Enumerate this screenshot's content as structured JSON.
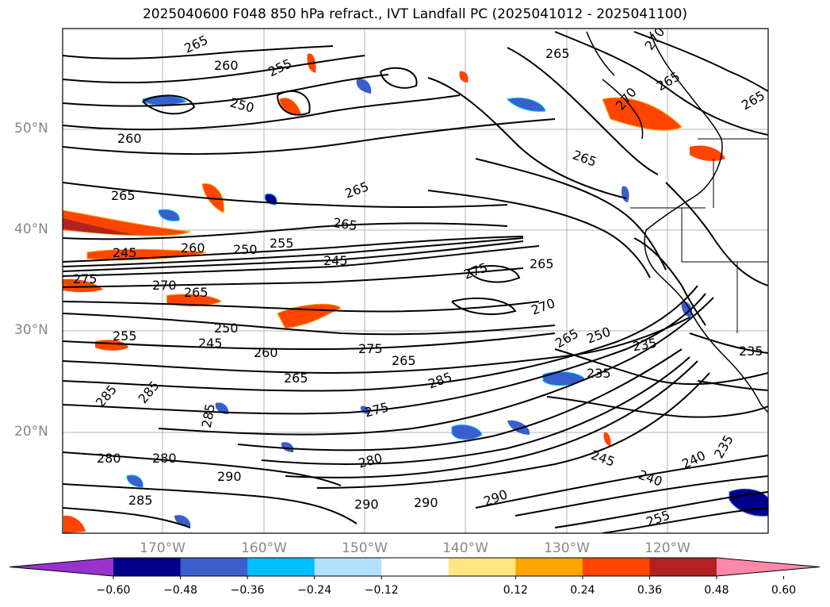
{
  "title": "2025040600 F048 850 hPa refract., IVT Landfall PC (2025041012 - 2025041100)",
  "lat_labels": [
    "50°N",
    "40°N",
    "30°N",
    "20°N"
  ],
  "lon_labels": [
    "170°W",
    "160°W",
    "150°W",
    "140°W",
    "130°W",
    "120°W"
  ],
  "colorbar": {
    "ticks": [
      "−0.60",
      "−0.48",
      "−0.36",
      "−0.24",
      "−0.12",
      "0.12",
      "0.24",
      "0.36",
      "0.48",
      "0.60"
    ],
    "colors": [
      "#9933cc",
      "#00008b",
      "#3a5fcd",
      "#00bfff",
      "#b0e2ff",
      "#ffffff",
      "#ffe680",
      "#ffa500",
      "#ff4500",
      "#b22222",
      "#ff88aa"
    ]
  },
  "contour_labels": [
    {
      "text": "265"
    },
    {
      "text": "260"
    },
    {
      "text": "255"
    },
    {
      "text": "250"
    },
    {
      "text": "260"
    },
    {
      "text": "265"
    },
    {
      "text": "265"
    },
    {
      "text": "245"
    },
    {
      "text": "260"
    },
    {
      "text": "250"
    },
    {
      "text": "255"
    },
    {
      "text": "245"
    },
    {
      "text": "275"
    },
    {
      "text": "270"
    },
    {
      "text": "265"
    },
    {
      "text": "255"
    },
    {
      "text": "250"
    },
    {
      "text": "245"
    },
    {
      "text": "260"
    },
    {
      "text": "265"
    },
    {
      "text": "275"
    },
    {
      "text": "265"
    },
    {
      "text": "285"
    },
    {
      "text": "285"
    },
    {
      "text": "285"
    },
    {
      "text": "280"
    },
    {
      "text": "280"
    },
    {
      "text": "290"
    },
    {
      "text": "285"
    },
    {
      "text": "280"
    },
    {
      "text": "290"
    },
    {
      "text": "290"
    },
    {
      "text": "290"
    },
    {
      "text": "275"
    },
    {
      "text": "265"
    },
    {
      "text": "270"
    },
    {
      "text": "265"
    },
    {
      "text": "250"
    },
    {
      "text": "235"
    },
    {
      "text": "235"
    },
    {
      "text": "245"
    },
    {
      "text": "240"
    },
    {
      "text": "240"
    },
    {
      "text": "235"
    },
    {
      "text": "255"
    },
    {
      "text": "265"
    },
    {
      "text": "270"
    },
    {
      "text": "265"
    },
    {
      "text": "270"
    },
    {
      "text": "265"
    },
    {
      "text": "265"
    },
    {
      "text": "265"
    },
    {
      "text": "235"
    },
    {
      "text": "285"
    },
    {
      "text": "275"
    }
  ]
}
